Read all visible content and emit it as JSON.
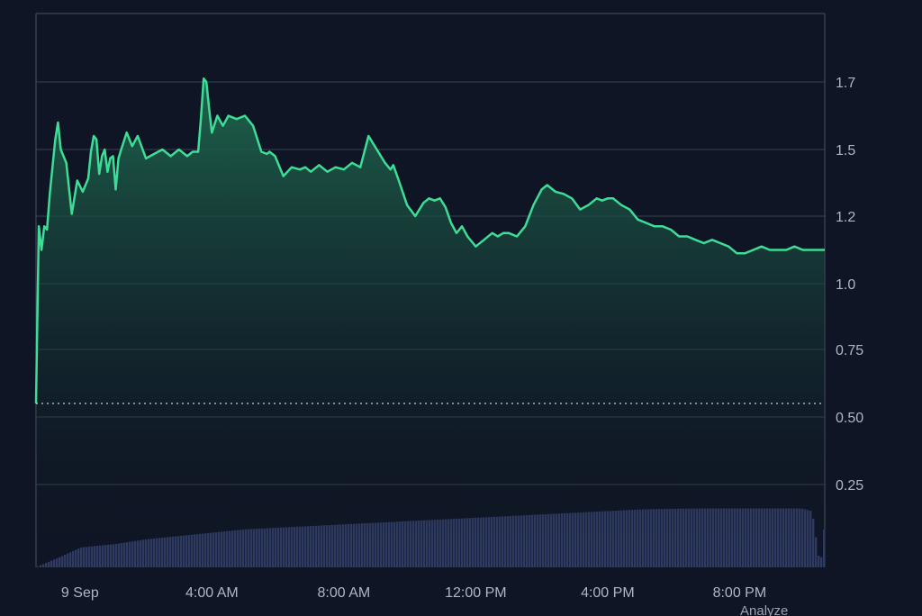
{
  "chart_data": {
    "type": "area",
    "title": "",
    "xlabel": "",
    "ylabel": "",
    "ylim": [
      0.0,
      1.95
    ],
    "y_ticks": [
      "1.7",
      "1.5",
      "1.2",
      "1.0",
      "0.75",
      "0.50",
      "0.25"
    ],
    "y_tick_values": [
      1.7,
      1.5,
      1.2,
      1.0,
      0.75,
      0.5,
      0.25
    ],
    "x_range": [
      "8 Sep 22:40",
      "9 Sep 22:35"
    ],
    "x_ticks": [
      "9 Sep",
      "4:00 AM",
      "8:00 AM",
      "12:00 PM",
      "4:00 PM",
      "8:00 PM"
    ],
    "x_tick_times": [
      "9 Sep 00:00",
      "9 Sep 04:00",
      "9 Sep 08:00",
      "9 Sep 12:00",
      "9 Sep 16:00",
      "9 Sep 20:00"
    ],
    "grid": true,
    "colors": {
      "background": "#0f1524",
      "price_line": "#3ddc97",
      "area_fill_top": "#1f6a4f",
      "volume_bars": "#2f3b63",
      "grid": "#3a4253",
      "reference_line": "#c9d0dc"
    },
    "reference_line": {
      "value": 0.55,
      "style": "dotted"
    },
    "series": [
      {
        "type": "line",
        "x": [
          "8 Sep 22:40",
          "8 Sep 22:45",
          "8 Sep 22:50",
          "8 Sep 22:55",
          "8 Sep 23:00",
          "8 Sep 23:05",
          "8 Sep 23:15",
          "8 Sep 23:20",
          "8 Sep 23:25",
          "8 Sep 23:35",
          "8 Sep 23:45",
          "8 Sep 23:55",
          "9 Sep 00:05",
          "9 Sep 00:15",
          "9 Sep 00:20",
          "9 Sep 00:25",
          "9 Sep 00:30",
          "9 Sep 00:35",
          "9 Sep 00:40",
          "9 Sep 00:45",
          "9 Sep 00:50",
          "9 Sep 00:55",
          "9 Sep 01:00",
          "9 Sep 01:05",
          "9 Sep 01:10",
          "9 Sep 01:15",
          "9 Sep 01:25",
          "9 Sep 01:35",
          "9 Sep 01:45",
          "9 Sep 02:00",
          "9 Sep 02:15",
          "9 Sep 02:30",
          "9 Sep 02:45",
          "9 Sep 03:00",
          "9 Sep 03:15",
          "9 Sep 03:25",
          "9 Sep 03:35",
          "9 Sep 03:40",
          "9 Sep 03:45",
          "9 Sep 03:50",
          "9 Sep 03:55",
          "9 Sep 04:00",
          "9 Sep 04:10",
          "9 Sep 04:20",
          "9 Sep 04:30",
          "9 Sep 04:45",
          "9 Sep 05:00",
          "9 Sep 05:15",
          "9 Sep 05:30",
          "9 Sep 05:40",
          "9 Sep 05:45",
          "9 Sep 05:55",
          "9 Sep 06:10",
          "9 Sep 06:25",
          "9 Sep 06:40",
          "9 Sep 06:50",
          "9 Sep 07:00",
          "9 Sep 07:15",
          "9 Sep 07:30",
          "9 Sep 07:45",
          "9 Sep 08:00",
          "9 Sep 08:15",
          "9 Sep 08:30",
          "9 Sep 08:45",
          "9 Sep 09:00",
          "9 Sep 09:15",
          "9 Sep 09:25",
          "9 Sep 09:30",
          "9 Sep 09:40",
          "9 Sep 09:55",
          "9 Sep 10:10",
          "9 Sep 10:25",
          "9 Sep 10:35",
          "9 Sep 10:45",
          "9 Sep 10:55",
          "9 Sep 11:05",
          "9 Sep 11:15",
          "9 Sep 11:25",
          "9 Sep 11:35",
          "9 Sep 11:45",
          "9 Sep 12:00",
          "9 Sep 12:15",
          "9 Sep 12:30",
          "9 Sep 12:40",
          "9 Sep 12:50",
          "9 Sep 13:00",
          "9 Sep 13:15",
          "9 Sep 13:30",
          "9 Sep 13:45",
          "9 Sep 14:00",
          "9 Sep 14:10",
          "9 Sep 14:25",
          "9 Sep 14:40",
          "9 Sep 14:55",
          "9 Sep 15:10",
          "9 Sep 15:25",
          "9 Sep 15:40",
          "9 Sep 15:50",
          "9 Sep 16:00",
          "9 Sep 16:10",
          "9 Sep 16:25",
          "9 Sep 16:40",
          "9 Sep 16:55",
          "9 Sep 17:10",
          "9 Sep 17:25",
          "9 Sep 17:40",
          "9 Sep 17:55",
          "9 Sep 18:10",
          "9 Sep 18:25",
          "9 Sep 18:40",
          "9 Sep 18:55",
          "9 Sep 19:10",
          "9 Sep 19:25",
          "9 Sep 19:40",
          "9 Sep 19:55",
          "9 Sep 20:10",
          "9 Sep 20:25",
          "9 Sep 20:40",
          "9 Sep 20:55",
          "9 Sep 21:10",
          "9 Sep 21:25",
          "9 Sep 21:40",
          "9 Sep 21:55",
          "9 Sep 22:10",
          "9 Sep 22:20",
          "9 Sep 22:35"
        ],
        "values": [
          0.55,
          1.17,
          1.1,
          1.17,
          1.16,
          1.3,
          1.53,
          1.58,
          1.5,
          1.44,
          1.21,
          1.36,
          1.31,
          1.37,
          1.49,
          1.54,
          1.53,
          1.39,
          1.47,
          1.5,
          1.4,
          1.46,
          1.47,
          1.32,
          1.46,
          1.5,
          1.55,
          1.51,
          1.54,
          1.46,
          1.48,
          1.5,
          1.47,
          1.5,
          1.47,
          1.49,
          1.49,
          1.59,
          1.71,
          1.7,
          1.62,
          1.55,
          1.6,
          1.57,
          1.6,
          1.59,
          1.6,
          1.57,
          1.49,
          1.48,
          1.49,
          1.47,
          1.38,
          1.42,
          1.41,
          1.42,
          1.4,
          1.43,
          1.4,
          1.42,
          1.41,
          1.44,
          1.42,
          1.54,
          1.5,
          1.44,
          1.41,
          1.43,
          1.36,
          1.25,
          1.2,
          1.26,
          1.28,
          1.27,
          1.28,
          1.24,
          1.18,
          1.15,
          1.17,
          1.14,
          1.11,
          1.13,
          1.15,
          1.14,
          1.15,
          1.15,
          1.14,
          1.17,
          1.25,
          1.32,
          1.34,
          1.31,
          1.3,
          1.28,
          1.23,
          1.25,
          1.28,
          1.27,
          1.28,
          1.28,
          1.25,
          1.23,
          1.19,
          1.18,
          1.17,
          1.17,
          1.16,
          1.14,
          1.14,
          1.13,
          1.12,
          1.13,
          1.12,
          1.11,
          1.09,
          1.09,
          1.1,
          1.11,
          1.1,
          1.1,
          1.1,
          1.11,
          1.1,
          1.1,
          1.1,
          1.1
        ]
      },
      {
        "type": "volume_bars",
        "x": [
          "8 Sep 22:40",
          "8 Sep 23:20",
          "9 Sep 00:00",
          "9 Sep 01:00",
          "9 Sep 02:00",
          "9 Sep 03:00",
          "9 Sep 04:00",
          "9 Sep 05:00",
          "9 Sep 06:00",
          "9 Sep 07:00",
          "9 Sep 08:00",
          "9 Sep 09:00",
          "9 Sep 10:00",
          "9 Sep 11:00",
          "9 Sep 12:00",
          "9 Sep 13:00",
          "9 Sep 14:00",
          "9 Sep 15:00",
          "9 Sep 16:00",
          "9 Sep 17:00",
          "9 Sep 18:00",
          "9 Sep 19:00",
          "9 Sep 20:00",
          "9 Sep 21:00",
          "9 Sep 21:50",
          "9 Sep 22:10",
          "9 Sep 22:25",
          "9 Sep 22:35"
        ],
        "values": [
          0.002,
          0.03,
          0.06,
          0.07,
          0.085,
          0.095,
          0.105,
          0.115,
          0.12,
          0.125,
          0.13,
          0.135,
          0.14,
          0.145,
          0.15,
          0.155,
          0.16,
          0.165,
          0.17,
          0.175,
          0.177,
          0.178,
          0.178,
          0.178,
          0.178,
          0.17,
          0.0,
          0.17
        ]
      }
    ]
  },
  "footer": {
    "analyze_label": "Analyze"
  }
}
